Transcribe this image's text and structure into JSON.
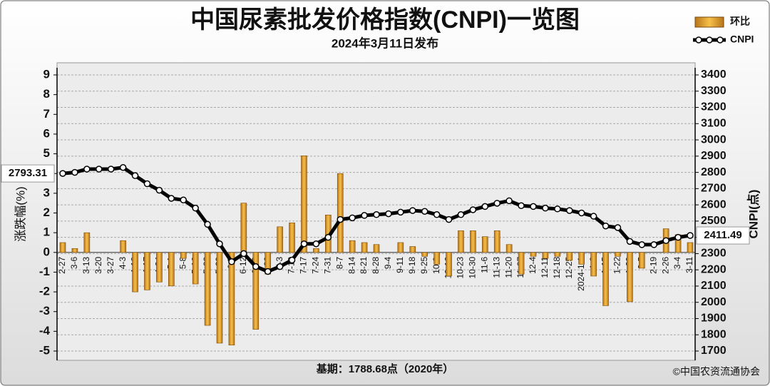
{
  "chart_data": {
    "type": "bar",
    "title": "中国尿素批发价格指数(CNPI)一览图",
    "subtitle": "2024年3月11日发布",
    "ylabel": "涨跌幅(%)",
    "y2label": "CNPI(点)",
    "base_note": "基期：1788.68点（2020年）",
    "source": "©中国农资流通协会",
    "categories": [
      "2-27",
      "3-6",
      "3-13",
      "3-20",
      "3-27",
      "4-3",
      "4-10",
      "4-17",
      "4-24",
      "5-1",
      "5-8",
      "5-16",
      "5-22",
      "5-29",
      "6-5",
      "6-12",
      "6-19",
      "6-26",
      "7-3",
      "7-10",
      "7-17",
      "7-24",
      "7-31",
      "8-7",
      "8-14",
      "8-21",
      "8-28",
      "9-4",
      "9-11",
      "9-18",
      "9-25",
      "10-9",
      "10-16",
      "10-23",
      "10-30",
      "11-6",
      "11-13",
      "11-20",
      "11-27",
      "12-4",
      "12-11",
      "12-18",
      "12-25",
      "2024-1-1",
      "1-8",
      "1-15",
      "1-22",
      "1-29",
      "2-5",
      "2-19",
      "2-26",
      "3-4",
      "3-11"
    ],
    "series": [
      {
        "name": "环比",
        "type": "bar",
        "axis": "y",
        "color": "#f0a830",
        "values": [
          0.5,
          0.2,
          1.0,
          0,
          0,
          0.6,
          -2.0,
          -1.9,
          -1.5,
          -1.7,
          -0.3,
          -1.6,
          -3.7,
          -4.6,
          -4.7,
          2.5,
          -3.9,
          -1.1,
          1.3,
          1.5,
          4.9,
          0.2,
          1.9,
          4.0,
          0.6,
          0.5,
          0.4,
          0,
          0.5,
          0.3,
          -0.2,
          -0.6,
          -1.2,
          1.1,
          1.1,
          0.8,
          1.1,
          0.4,
          -1.1,
          -0.2,
          -0.3,
          -0.2,
          -0.4,
          -0.6,
          -1.2,
          -2.7,
          -0.2,
          -2.5,
          -0.8,
          0,
          1.2,
          0.9,
          0.5
        ]
      },
      {
        "name": "CNPI",
        "type": "line",
        "axis": "y2",
        "color": "#000000",
        "values": [
          2793.31,
          2800,
          2820,
          2820,
          2820,
          2830,
          2780,
          2730,
          2690,
          2640,
          2630,
          2580,
          2480,
          2360,
          2250,
          2300,
          2220,
          2190,
          2220,
          2260,
          2360,
          2360,
          2400,
          2510,
          2520,
          2535,
          2540,
          2545,
          2555,
          2565,
          2560,
          2540,
          2510,
          2540,
          2570,
          2590,
          2610,
          2625,
          2595,
          2590,
          2580,
          2575,
          2565,
          2550,
          2530,
          2470,
          2460,
          2375,
          2355,
          2355,
          2380,
          2400,
          2411.49
        ]
      }
    ],
    "ylim": [
      -5,
      9
    ],
    "yticks": [
      -5,
      -4,
      -3,
      -2,
      -1,
      0,
      1,
      2,
      3,
      4,
      5,
      6,
      7,
      8,
      9
    ],
    "y2lim": [
      1700,
      3400
    ],
    "y2ticks": [
      1700,
      1800,
      1900,
      2000,
      2100,
      2200,
      2300,
      2400,
      2500,
      2600,
      2700,
      2800,
      2900,
      3000,
      3100,
      3200,
      3300,
      3400
    ],
    "grid": "y2"
  }
}
